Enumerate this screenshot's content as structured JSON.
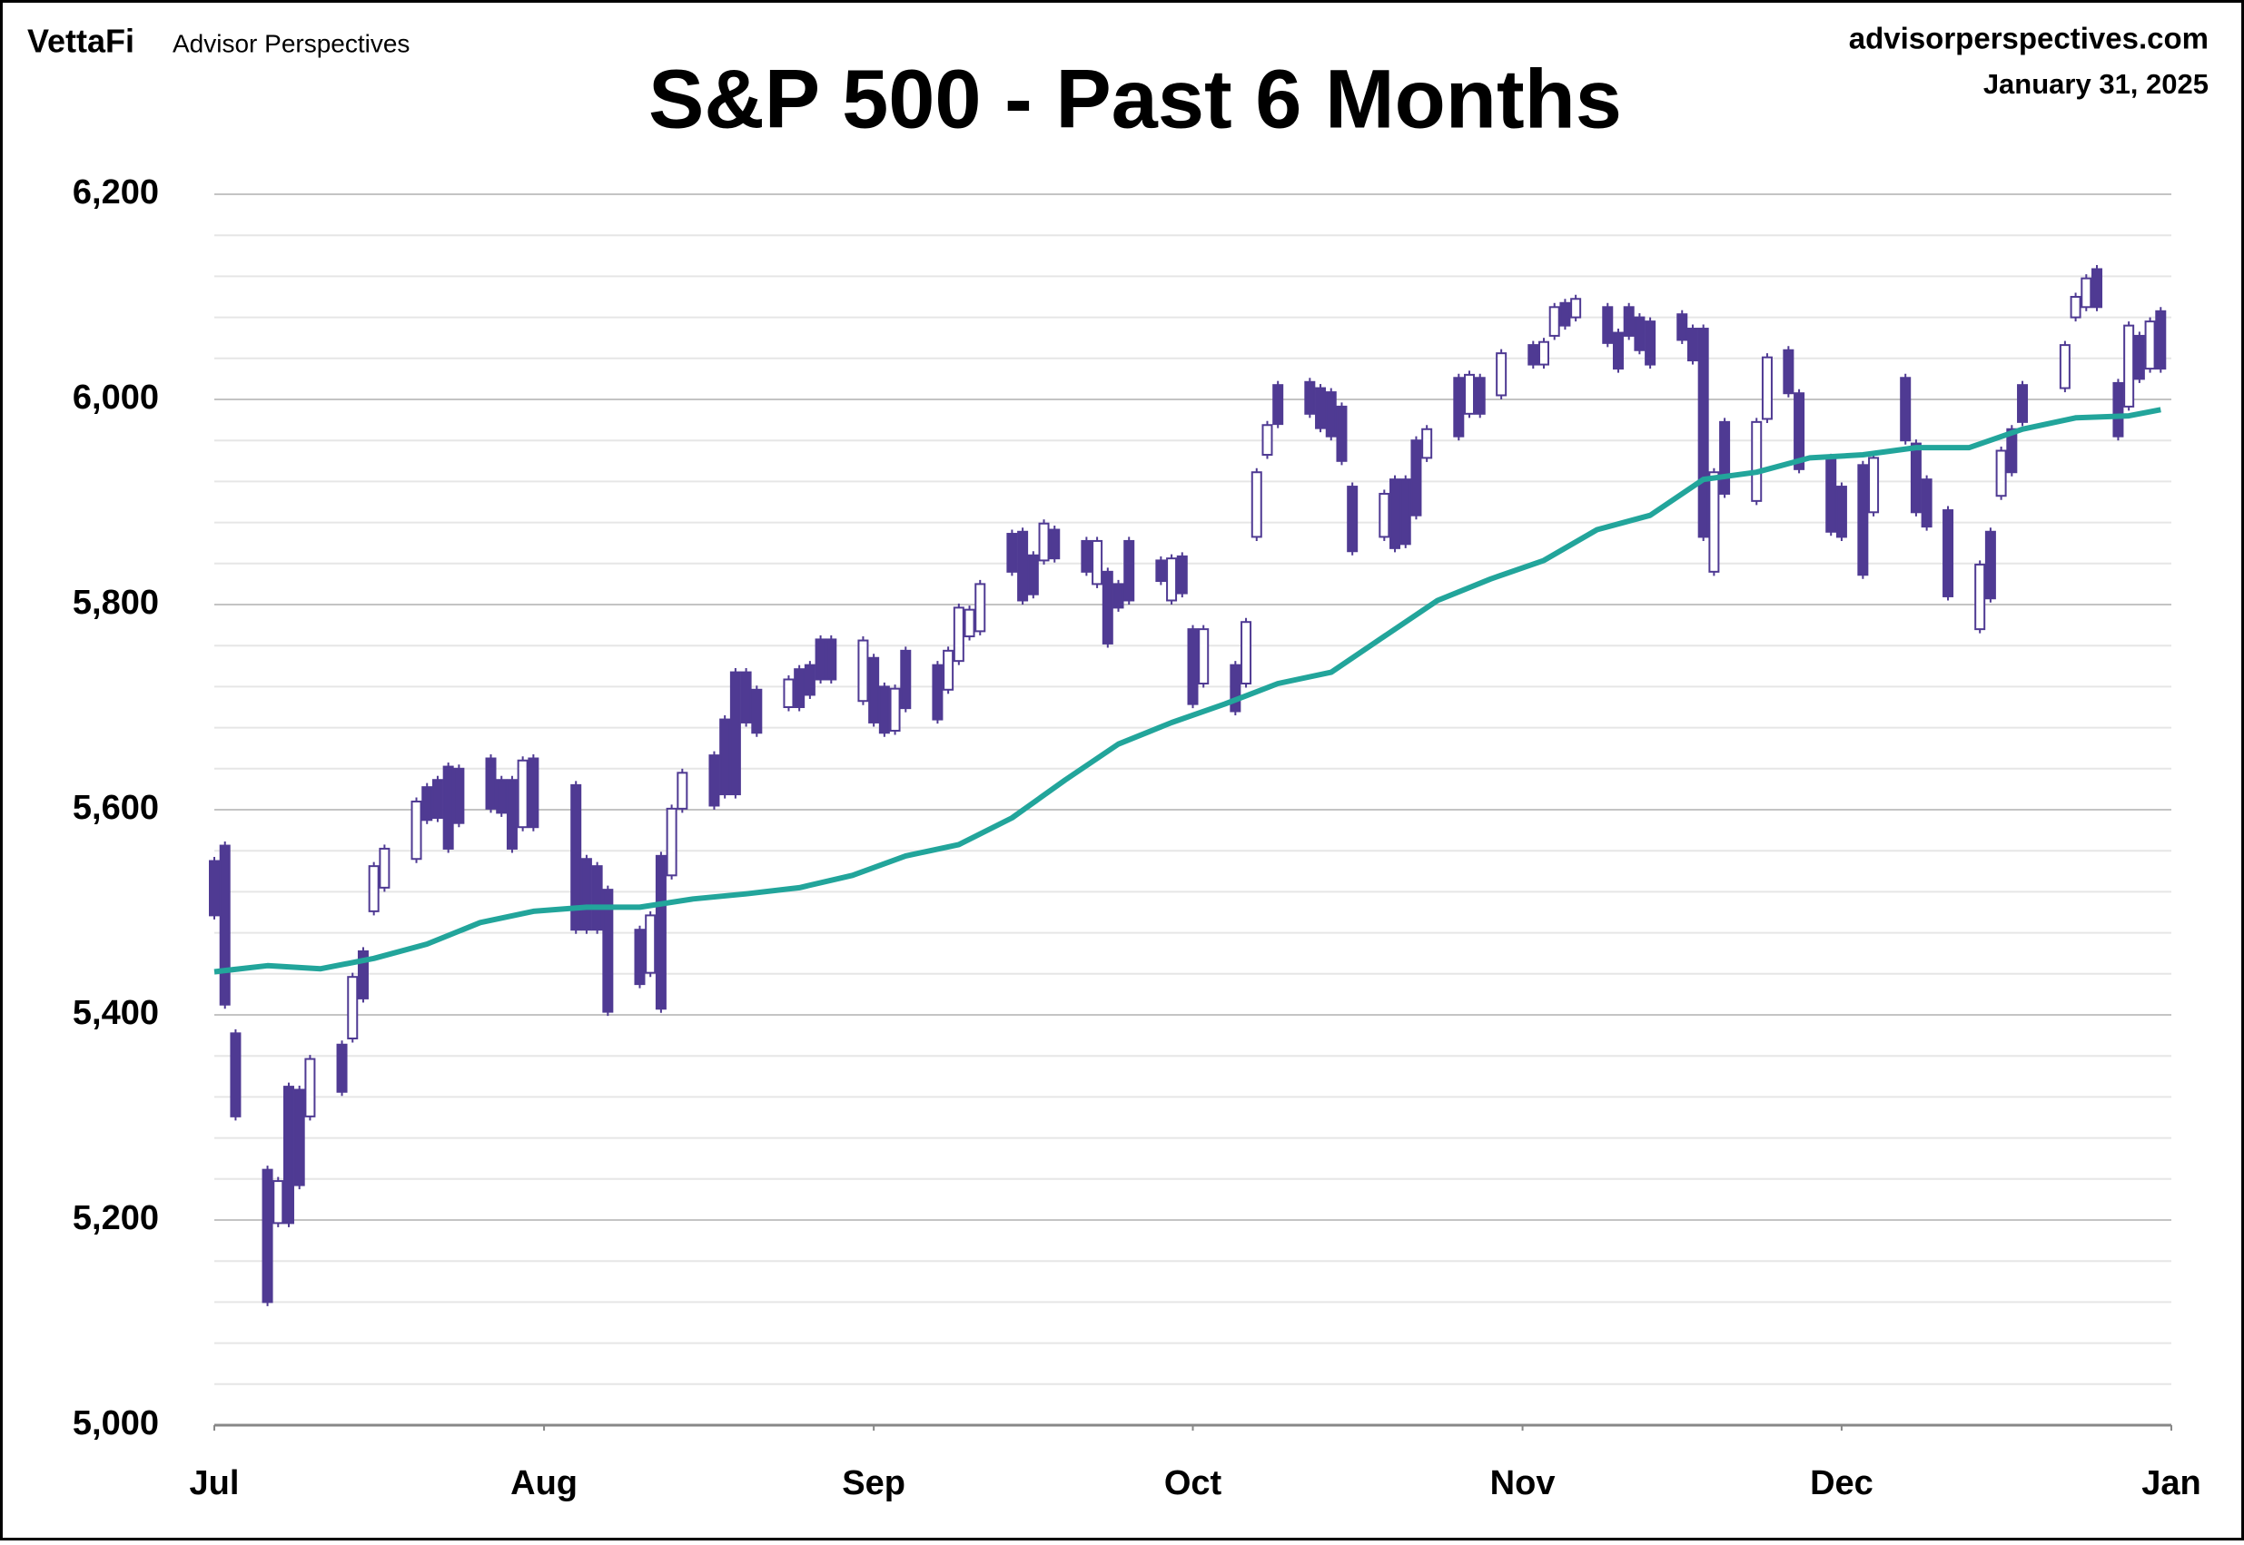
{
  "header": {
    "brand": "VettaFi",
    "site": "Advisor Perspectives",
    "source": "advisorperspectives.com",
    "date": "January 31, 2025"
  },
  "chart_data": {
    "type": "candlestick",
    "title": "S&P 500 - Past 6 Months",
    "up_color": "#ffffff",
    "down_color": "#4f3a93",
    "edge_color": "#4f3a93",
    "x": [
      0,
      1,
      2,
      5,
      6,
      7,
      8,
      9,
      12,
      13,
      14,
      15,
      16,
      19,
      20,
      21,
      22,
      23,
      26,
      27,
      28,
      29,
      30,
      34,
      35,
      36,
      37,
      40,
      41,
      42,
      43,
      44,
      47,
      48,
      49,
      50,
      51,
      54,
      55,
      56,
      57,
      58,
      61,
      62,
      63,
      64,
      65,
      68,
      69,
      70,
      71,
      72,
      75,
      76,
      77,
      78,
      79,
      82,
      83,
      84,
      85,
      86,
      89,
      90,
      91,
      92,
      93,
      96,
      97,
      98,
      99,
      100,
      103,
      104,
      105,
      106,
      107,
      110,
      111,
      112,
      113,
      114,
      117,
      118,
      119,
      121,
      124,
      125,
      126,
      127,
      128,
      131,
      132,
      133,
      134,
      135,
      138,
      139,
      140,
      141,
      142,
      145,
      146,
      148,
      149,
      152,
      153,
      155,
      156,
      159,
      160,
      161,
      163,
      166,
      167,
      168,
      169,
      170,
      174,
      175,
      176,
      177,
      179,
      180,
      181,
      182,
      183
    ],
    "open": [
      5550,
      5565,
      5382,
      5249,
      5197,
      5330,
      5327,
      5301,
      5371,
      5377,
      5462,
      5501,
      5524,
      5552,
      5622,
      5629,
      5642,
      5640,
      5650,
      5629,
      5629,
      5583,
      5650,
      5624,
      5552,
      5545,
      5522,
      5483,
      5441,
      5555,
      5536,
      5601,
      5653,
      5688,
      5734,
      5734,
      5717,
      5700,
      5737,
      5741,
      5766,
      5766,
      5706,
      5748,
      5720,
      5677,
      5755,
      5741,
      5717,
      5745,
      5769,
      5774,
      5869,
      5871,
      5848,
      5843,
      5873,
      5862,
      5820,
      5832,
      5820,
      5862,
      5843,
      5804,
      5847,
      5776,
      5723,
      5741,
      5723,
      5866,
      5946,
      6014,
      6017,
      6011,
      6007,
      5993,
      5915,
      5866,
      5922,
      5922,
      5960,
      5943,
      6021,
      5986,
      6021,
      6004,
      6053,
      6034,
      6062,
      6094,
      6080,
      6090,
      6065,
      6090,
      6080,
      6076,
      6083,
      6069,
      6069,
      5832,
      5978,
      5901,
      5981,
      6048,
      6006,
      5943,
      5915,
      5936,
      5890,
      6021,
      5957,
      5922,
      5892,
      5776,
      5871,
      5906,
      5971,
      6014,
      6011,
      6080,
      6090,
      6127,
      6016,
      5993,
      6062,
      6030,
      6086
    ],
    "high": [
      5554,
      5569,
      5386,
      5253,
      5242,
      5334,
      5331,
      5361,
      5375,
      5441,
      5466,
      5549,
      5566,
      5612,
      5626,
      5633,
      5646,
      5644,
      5654,
      5633,
      5633,
      5652,
      5654,
      5628,
      5556,
      5549,
      5526,
      5487,
      5501,
      5559,
      5605,
      5640,
      5657,
      5692,
      5738,
      5738,
      5721,
      5731,
      5741,
      5745,
      5770,
      5770,
      5769,
      5752,
      5724,
      5722,
      5759,
      5745,
      5759,
      5801,
      5799,
      5824,
      5873,
      5875,
      5852,
      5883,
      5877,
      5866,
      5866,
      5836,
      5824,
      5866,
      5847,
      5849,
      5851,
      5780,
      5780,
      5745,
      5787,
      5933,
      5979,
      6018,
      6021,
      6015,
      6011,
      5997,
      5919,
      5912,
      5926,
      5926,
      5964,
      5975,
      6025,
      6028,
      6025,
      6049,
      6057,
      6060,
      6094,
      6098,
      6102,
      6094,
      6069,
      6094,
      6084,
      6080,
      6087,
      6073,
      6073,
      5933,
      5982,
      5982,
      6045,
      6052,
      6010,
      5947,
      5919,
      5940,
      5947,
      6025,
      5961,
      5926,
      5896,
      5843,
      5875,
      5954,
      5975,
      6018,
      6057,
      6104,
      6122,
      6131,
      6020,
      6076,
      6066,
      6080,
      6090
    ],
    "low": [
      5493,
      5406,
      5297,
      5116,
      5193,
      5193,
      5230,
      5297,
      5321,
      5373,
      5412,
      5497,
      5520,
      5548,
      5586,
      5588,
      5558,
      5583,
      5597,
      5593,
      5558,
      5579,
      5579,
      5479,
      5479,
      5479,
      5399,
      5426,
      5437,
      5402,
      5532,
      5597,
      5600,
      5611,
      5611,
      5681,
      5671,
      5696,
      5696,
      5708,
      5723,
      5723,
      5702,
      5681,
      5671,
      5673,
      5695,
      5684,
      5713,
      5741,
      5765,
      5770,
      5828,
      5800,
      5806,
      5839,
      5841,
      5828,
      5816,
      5758,
      5793,
      5800,
      5819,
      5800,
      5807,
      5699,
      5719,
      5692,
      5719,
      5862,
      5942,
      5972,
      5982,
      5968,
      5960,
      5936,
      5848,
      5862,
      5851,
      5855,
      5883,
      5939,
      5960,
      5982,
      5982,
      6000,
      6030,
      6030,
      6058,
      6068,
      6076,
      6051,
      6026,
      6058,
      6044,
      6030,
      6054,
      6034,
      5862,
      5828,
      5904,
      5897,
      5977,
      6002,
      5928,
      5867,
      5862,
      5825,
      5886,
      5956,
      5886,
      5872,
      5804,
      5772,
      5802,
      5902,
      5925,
      5974,
      6007,
      6076,
      6086,
      6086,
      5960,
      5989,
      6016,
      6026,
      6026
    ],
    "close": [
      5497,
      5410,
      5301,
      5120,
      5238,
      5197,
      5234,
      5357,
      5325,
      5437,
      5416,
      5545,
      5562,
      5608,
      5590,
      5592,
      5562,
      5587,
      5601,
      5597,
      5562,
      5648,
      5583,
      5483,
      5483,
      5483,
      5403,
      5430,
      5497,
      5406,
      5601,
      5636,
      5604,
      5615,
      5615,
      5685,
      5675,
      5727,
      5700,
      5712,
      5727,
      5727,
      5765,
      5685,
      5675,
      5718,
      5699,
      5688,
      5755,
      5797,
      5795,
      5820,
      5832,
      5804,
      5810,
      5879,
      5845,
      5832,
      5862,
      5762,
      5797,
      5804,
      5823,
      5845,
      5811,
      5703,
      5776,
      5696,
      5783,
      5929,
      5975,
      5976,
      5986,
      5972,
      5964,
      5940,
      5852,
      5908,
      5855,
      5859,
      5887,
      5971,
      5964,
      6024,
      5986,
      6045,
      6034,
      6056,
      6090,
      6072,
      6098,
      6055,
      6030,
      6062,
      6048,
      6034,
      6058,
      6038,
      5866,
      5929,
      5908,
      5978,
      6041,
      6006,
      5932,
      5871,
      5866,
      5829,
      5943,
      5960,
      5890,
      5876,
      5808,
      5839,
      5806,
      5950,
      5929,
      5978,
      6053,
      6100,
      6118,
      6090,
      5964,
      6072,
      6020,
      6076,
      6030
    ],
    "moving_average": {
      "color": "#22a59b",
      "x": [
        0,
        5,
        10,
        15,
        20,
        25,
        30,
        35,
        40,
        45,
        50,
        55,
        60,
        65,
        70,
        75,
        80,
        85,
        90,
        95,
        100,
        105,
        110,
        115,
        120,
        125,
        130,
        135,
        140,
        145,
        150,
        155,
        160,
        165,
        170,
        175,
        180,
        183
      ],
      "values": [
        5442,
        5448,
        5445,
        5455,
        5469,
        5490,
        5501,
        5505,
        5505,
        5513,
        5518,
        5524,
        5536,
        5555,
        5566,
        5592,
        5629,
        5664,
        5685,
        5703,
        5723,
        5734,
        5769,
        5804,
        5825,
        5843,
        5873,
        5887,
        5922,
        5929,
        5943,
        5946,
        5953,
        5953,
        5971,
        5982,
        5984,
        5990
      ]
    },
    "xlim": [
      0,
      184
    ],
    "xticks": [
      {
        "value": 0,
        "label": "Jul"
      },
      {
        "value": 31,
        "label": "Aug"
      },
      {
        "value": 62,
        "label": "Sep"
      },
      {
        "value": 92,
        "label": "Oct"
      },
      {
        "value": 123,
        "label": "Nov"
      },
      {
        "value": 153,
        "label": "Dec"
      },
      {
        "value": 184,
        "label": "Jan"
      }
    ],
    "ylim": [
      5000,
      6200
    ],
    "yticks": [
      {
        "value": 5000,
        "label": "5,000"
      },
      {
        "value": 5200,
        "label": "5,200"
      },
      {
        "value": 5400,
        "label": "5,400"
      },
      {
        "value": 5600,
        "label": "5,600"
      },
      {
        "value": 5800,
        "label": "5,800"
      },
      {
        "value": 6000,
        "label": "6,000"
      },
      {
        "value": 6200,
        "label": "6,200"
      }
    ],
    "grid": true
  }
}
